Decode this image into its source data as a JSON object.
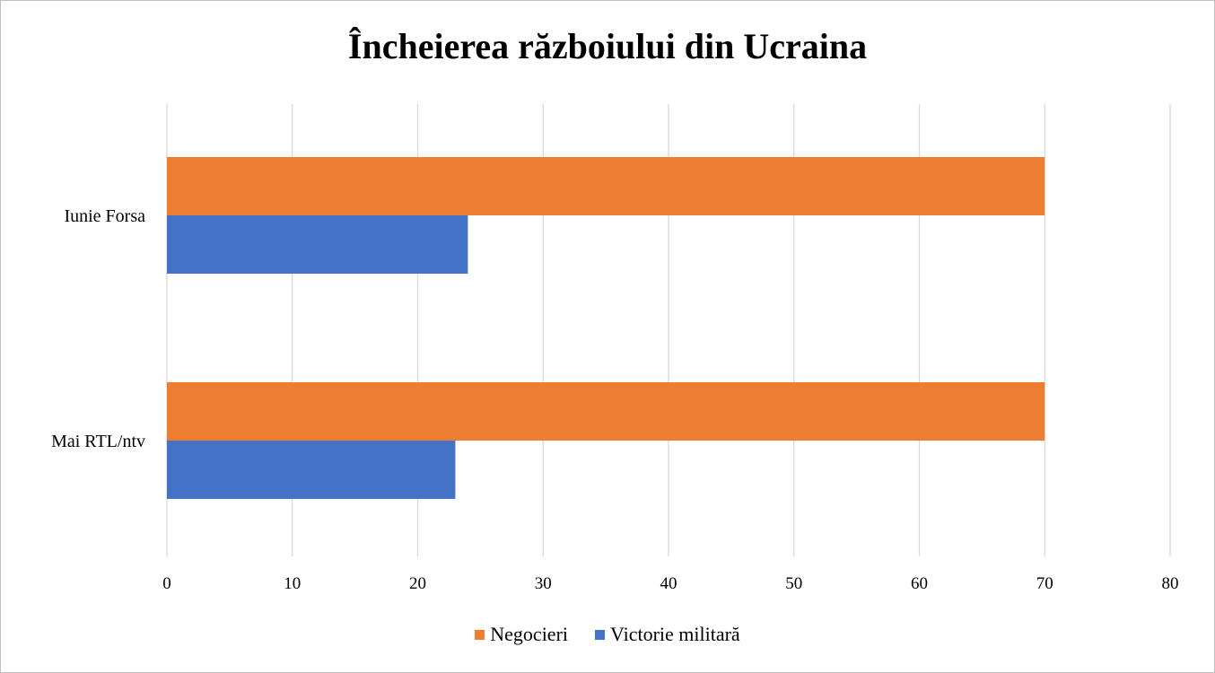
{
  "chart_data": {
    "type": "bar",
    "orientation": "horizontal",
    "title": "Încheierea războiului din Ucraina",
    "categories": [
      "Iunie Forsa",
      "Mai RTL/ntv"
    ],
    "series": [
      {
        "name": "Negocieri",
        "color": "#ED7D31",
        "values": [
          70,
          70
        ]
      },
      {
        "name": "Victorie militară",
        "color": "#4472C4",
        "values": [
          24,
          23
        ]
      }
    ],
    "x_ticks": [
      0,
      10,
      20,
      30,
      40,
      50,
      60,
      70,
      80
    ],
    "xlim": [
      0,
      80
    ],
    "grid": true,
    "legend_position": "bottom"
  }
}
